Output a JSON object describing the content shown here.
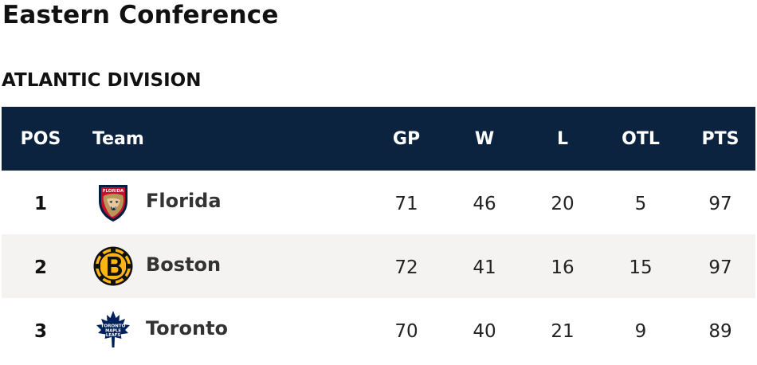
{
  "conference": {
    "title": "Eastern Conference"
  },
  "division": {
    "title": "ATLANTIC DIVISION"
  },
  "table": {
    "columns": {
      "pos": "POS",
      "team": "Team",
      "gp": "GP",
      "w": "W",
      "l": "L",
      "otl": "OTL",
      "pts": "PTS"
    },
    "rows": [
      {
        "pos": "1",
        "team": "Florida",
        "logo_icon": "florida-panthers-logo-icon",
        "gp": "71",
        "w": "46",
        "l": "20",
        "otl": "5",
        "pts": "97"
      },
      {
        "pos": "2",
        "team": "Boston",
        "logo_icon": "boston-bruins-logo-icon",
        "gp": "72",
        "w": "41",
        "l": "16",
        "otl": "15",
        "pts": "97"
      },
      {
        "pos": "3",
        "team": "Toronto",
        "logo_icon": "toronto-maple-leafs-logo-icon",
        "gp": "70",
        "w": "40",
        "l": "21",
        "otl": "9",
        "pts": "89"
      }
    ]
  },
  "logos": {
    "florida": {
      "wordmark": "FLORIDA"
    },
    "toronto": {
      "wordmark_line1": "TORONTO",
      "wordmark_line2": "MAPLE",
      "wordmark_line3": "LEAFS"
    }
  },
  "colors": {
    "header_background": "#0c2340",
    "header_text": "#ffffff",
    "alt_row_background": "#f4f3f2",
    "florida_red": "#c8102e",
    "florida_navy": "#041e42",
    "florida_gold": "#b9975b",
    "boston_gold": "#fcb514",
    "boston_black": "#111111",
    "toronto_blue": "#00205b"
  }
}
